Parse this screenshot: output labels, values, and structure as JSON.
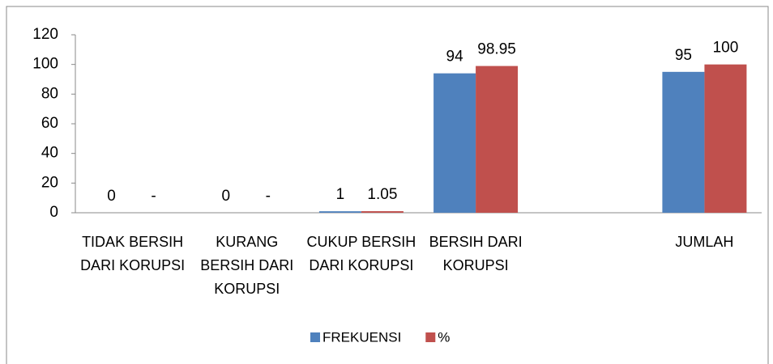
{
  "chart_data": {
    "type": "bar",
    "categories": [
      "TIDAK BERSIH DARI KORUPSI",
      "KURANG BERSIH DARI KORUPSI",
      "CUKUP BERSIH DARI KORUPSI",
      "BERSIH DARI KORUPSI",
      null,
      "JUMLAH"
    ],
    "series": [
      {
        "name": "FREKUENSI",
        "color": "#4f81bd",
        "values": [
          0,
          0,
          1,
          94,
          null,
          95
        ]
      },
      {
        "name": "%",
        "color": "#c0504d",
        "values": [
          null,
          null,
          1.05,
          98.95,
          null,
          100
        ],
        "value_labels": [
          "-",
          "-",
          "1.05",
          "98.95",
          null,
          "100"
        ]
      }
    ],
    "ylim": [
      0,
      120
    ],
    "yticks": [
      0,
      20,
      40,
      60,
      80,
      100,
      120
    ],
    "grid": false,
    "legend": "bottom"
  }
}
